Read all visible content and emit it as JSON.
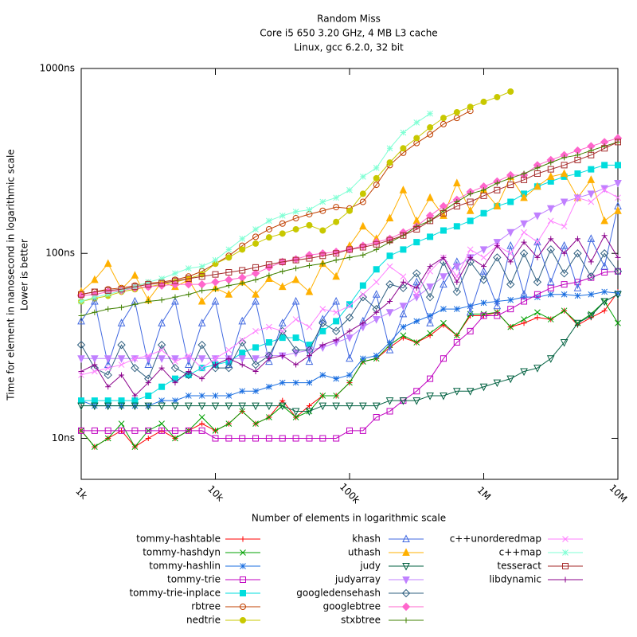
{
  "chart_data": {
    "type": "line",
    "title": [
      "Random Miss",
      "Core i5 650 3.20 GHz, 4 MB L3 cache",
      "Linux, gcc 6.2.0, 32 bit"
    ],
    "ylabel": [
      "Time for element in nanosecond in logarithmic scale",
      "Lower is better"
    ],
    "xlabel": "Number of elements in logarithmic scale",
    "xscale": "log",
    "yscale": "log",
    "xlim": [
      1000,
      10000000
    ],
    "ylim": [
      6,
      1000
    ],
    "xticks": [
      {
        "value": 1000,
        "label": "1k"
      },
      {
        "value": 10000,
        "label": "10k"
      },
      {
        "value": 100000,
        "label": "100k"
      },
      {
        "value": 1000000,
        "label": "1M"
      },
      {
        "value": 10000000,
        "label": "10M"
      }
    ],
    "yticks": [
      {
        "value": 10,
        "label": "10ns"
      },
      {
        "value": 100,
        "label": "100ns"
      },
      {
        "value": 1000,
        "label": "1000ns"
      }
    ],
    "legend": "bottom",
    "x": [
      1000,
      1259,
      1585,
      1995,
      2512,
      3162,
      3981,
      5012,
      6310,
      7943,
      10000,
      12589,
      15849,
      19953,
      25119,
      31623,
      39811,
      50119,
      63096,
      79433,
      100000,
      125893,
      158489,
      199526,
      251189,
      316228,
      398107,
      501187,
      630957,
      794328,
      1000000,
      1258925,
      1584893,
      1995262,
      2511886,
      3162278,
      3981072,
      5011872,
      6309573,
      7943282,
      10000000
    ],
    "series": [
      {
        "name": "tommy-hashtable",
        "color": "#ff0000",
        "marker": "plus",
        "values": [
          11,
          9,
          10,
          11,
          9,
          10,
          11,
          10,
          11,
          12,
          11,
          12,
          14,
          12,
          13,
          16,
          13,
          15,
          17,
          17,
          20,
          26,
          27,
          31,
          35,
          33,
          36,
          41,
          36,
          46,
          46,
          48,
          40,
          42,
          45,
          44,
          49,
          41,
          45,
          49,
          62
        ]
      },
      {
        "name": "tommy-hashdyn",
        "color": "#00a000",
        "marker": "cross",
        "values": [
          11,
          9,
          10,
          12,
          9,
          11,
          12,
          10,
          11,
          13,
          11,
          12,
          14,
          12,
          13,
          15,
          13,
          14,
          17,
          17,
          20,
          26,
          27,
          32,
          36,
          33,
          37,
          42,
          36,
          47,
          47,
          48,
          40,
          44,
          48,
          44,
          49,
          42,
          47,
          55,
          42
        ]
      },
      {
        "name": "tommy-hashlin",
        "color": "#1a6ee0",
        "marker": "star",
        "values": [
          16,
          15,
          15,
          15,
          15,
          15,
          16,
          16,
          17,
          17,
          17,
          17,
          18,
          18,
          19,
          20,
          20,
          20,
          22,
          21,
          22,
          27,
          28,
          33,
          40,
          43,
          46,
          50,
          50,
          52,
          54,
          55,
          56,
          58,
          58,
          60,
          60,
          59,
          60,
          62,
          61
        ]
      },
      {
        "name": "tommy-trie",
        "color": "#c000c0",
        "marker": "square",
        "values": [
          11,
          11,
          11,
          11,
          11,
          11,
          11,
          11,
          11,
          11,
          10,
          10,
          10,
          10,
          10,
          10,
          10,
          10,
          10,
          10,
          11,
          11,
          13,
          14,
          16,
          18,
          21,
          27,
          33,
          38,
          46,
          46,
          50,
          55,
          60,
          65,
          68,
          70,
          74,
          79,
          80
        ]
      },
      {
        "name": "tommy-trie-inplace",
        "color": "#00dddd",
        "marker": "square-filled",
        "values": [
          16,
          16,
          16,
          16,
          16,
          17,
          19,
          21,
          22,
          24,
          25,
          26,
          29,
          31,
          33,
          35,
          35,
          32,
          38,
          43,
          53,
          67,
          82,
          97,
          105,
          115,
          123,
          133,
          140,
          150,
          165,
          180,
          190,
          210,
          230,
          245,
          260,
          270,
          285,
          300,
          300
        ]
      },
      {
        "name": "rbtree",
        "color": "#c04000",
        "marker": "circle",
        "values": [
          60,
          62,
          64,
          65,
          67,
          69,
          70,
          72,
          75,
          80,
          88,
          97,
          110,
          123,
          135,
          145,
          155,
          163,
          170,
          178,
          175,
          190,
          235,
          300,
          350,
          395,
          440,
          500,
          540,
          590,
          null,
          null,
          null,
          null,
          null,
          null,
          null,
          null,
          null,
          null,
          null
        ]
      },
      {
        "name": "nedtrie",
        "color": "#c8c800",
        "marker": "circle-filled",
        "values": [
          55,
          57,
          59,
          62,
          64,
          66,
          68,
          70,
          73,
          77,
          88,
          95,
          105,
          113,
          122,
          128,
          135,
          142,
          133,
          148,
          170,
          210,
          255,
          310,
          370,
          420,
          480,
          540,
          580,
          620,
          660,
          700,
          750,
          null,
          null,
          null,
          null,
          null,
          null,
          null,
          null
        ]
      },
      {
        "name": "khash",
        "color": "#4169e1",
        "marker": "triangle",
        "values": [
          43,
          55,
          25,
          42,
          55,
          25,
          42,
          55,
          25,
          42,
          55,
          25,
          43,
          55,
          26,
          42,
          55,
          26,
          44,
          55,
          27,
          43,
          60,
          30,
          47,
          70,
          42,
          68,
          90,
          48,
          80,
          52,
          110,
          60,
          115,
          70,
          110,
          65,
          120,
          85,
          180
        ]
      },
      {
        "name": "uthash",
        "color": "#ffb000",
        "marker": "triangle-filled",
        "values": [
          62,
          72,
          88,
          64,
          76,
          56,
          70,
          66,
          72,
          55,
          65,
          60,
          70,
          60,
          73,
          66,
          72,
          62,
          88,
          75,
          110,
          140,
          120,
          155,
          220,
          150,
          200,
          160,
          240,
          170,
          220,
          180,
          260,
          200,
          230,
          260,
          270,
          200,
          250,
          150,
          170
        ]
      },
      {
        "name": "judy",
        "color": "#006040",
        "marker": "triangle-down",
        "values": [
          15,
          15,
          15,
          15,
          15,
          15,
          15,
          15,
          15,
          15,
          15,
          15,
          15,
          15,
          15,
          15,
          14,
          14,
          15,
          15,
          15,
          15,
          15,
          16,
          16,
          16,
          17,
          17,
          18,
          18,
          19,
          20,
          21,
          23,
          24,
          27,
          33,
          42,
          46,
          55,
          60
        ]
      },
      {
        "name": "judyarray",
        "color": "#c080ff",
        "marker": "triangle-down-filled",
        "values": [
          27,
          27,
          27,
          27,
          27,
          27,
          27,
          27,
          27,
          27,
          27,
          27,
          27,
          27,
          28,
          28,
          29,
          30,
          31,
          33,
          35,
          40,
          44,
          48,
          52,
          58,
          66,
          75,
          85,
          95,
          105,
          115,
          130,
          145,
          160,
          175,
          190,
          200,
          210,
          225,
          240
        ]
      },
      {
        "name": "googledensehash",
        "color": "#306080",
        "marker": "diamond",
        "values": [
          32,
          24,
          22,
          32,
          24,
          21,
          32,
          24,
          22,
          32,
          24,
          24,
          33,
          25,
          28,
          38,
          30,
          30,
          42,
          38,
          45,
          58,
          50,
          68,
          65,
          78,
          58,
          90,
          62,
          90,
          72,
          95,
          68,
          100,
          70,
          105,
          78,
          100,
          75,
          100,
          80
        ]
      },
      {
        "name": "googlebtree",
        "color": "#ff66cc",
        "marker": "diamond-filled",
        "values": [
          59,
          60,
          62,
          63,
          65,
          66,
          67,
          68,
          68,
          68,
          70,
          72,
          74,
          78,
          84,
          90,
          93,
          98,
          100,
          102,
          105,
          110,
          115,
          120,
          130,
          140,
          160,
          180,
          195,
          215,
          230,
          245,
          265,
          265,
          300,
          320,
          340,
          360,
          380,
          400,
          420
        ]
      },
      {
        "name": "stxbtree",
        "color": "#408000",
        "marker": "plus",
        "values": [
          46,
          48,
          50,
          51,
          53,
          55,
          56,
          58,
          60,
          63,
          64,
          67,
          69,
          72,
          76,
          80,
          83,
          86,
          88,
          92,
          95,
          98,
          105,
          115,
          125,
          140,
          150,
          170,
          190,
          210,
          220,
          240,
          255,
          270,
          290,
          310,
          330,
          340,
          360,
          380,
          400
        ]
      },
      {
        "name": "c++unorderedmap",
        "color": "#ff80ff",
        "marker": "cross",
        "values": [
          22,
          23,
          24,
          25,
          27,
          28,
          30,
          26,
          28,
          24,
          27,
          30,
          34,
          38,
          40,
          38,
          44,
          40,
          50,
          48,
          52,
          60,
          70,
          85,
          75,
          60,
          80,
          95,
          75,
          105,
          95,
          110,
          100,
          130,
          115,
          150,
          140,
          200,
          190,
          220,
          200
        ]
      },
      {
        "name": "c++map",
        "color": "#7fffd4",
        "marker": "star",
        "values": [
          55,
          58,
          60,
          63,
          66,
          70,
          73,
          78,
          83,
          85,
          92,
          105,
          120,
          135,
          150,
          160,
          168,
          172,
          190,
          200,
          220,
          260,
          290,
          370,
          450,
          510,
          570,
          null,
          null,
          null,
          null,
          null,
          null,
          null,
          null,
          null,
          null,
          null,
          null,
          null,
          null
        ]
      },
      {
        "name": "tesseract",
        "color": "#a52a2a",
        "marker": "square",
        "values": [
          60,
          62,
          63,
          64,
          66,
          68,
          69,
          71,
          73,
          75,
          77,
          79,
          81,
          84,
          87,
          90,
          92,
          94,
          97,
          100,
          105,
          108,
          112,
          118,
          125,
          135,
          150,
          165,
          180,
          190,
          205,
          220,
          235,
          250,
          270,
          285,
          300,
          320,
          340,
          370,
          400
        ]
      },
      {
        "name": "libdynamic",
        "color": "#8b008b",
        "marker": "plus",
        "values": [
          23,
          25,
          19,
          22,
          17,
          20,
          24,
          20,
          23,
          21,
          25,
          27,
          25,
          23,
          27,
          28,
          25,
          28,
          32,
          34,
          38,
          42,
          48,
          55,
          70,
          65,
          85,
          95,
          70,
          95,
          85,
          110,
          90,
          115,
          95,
          120,
          100,
          120,
          90,
          125,
          95
        ]
      }
    ]
  }
}
